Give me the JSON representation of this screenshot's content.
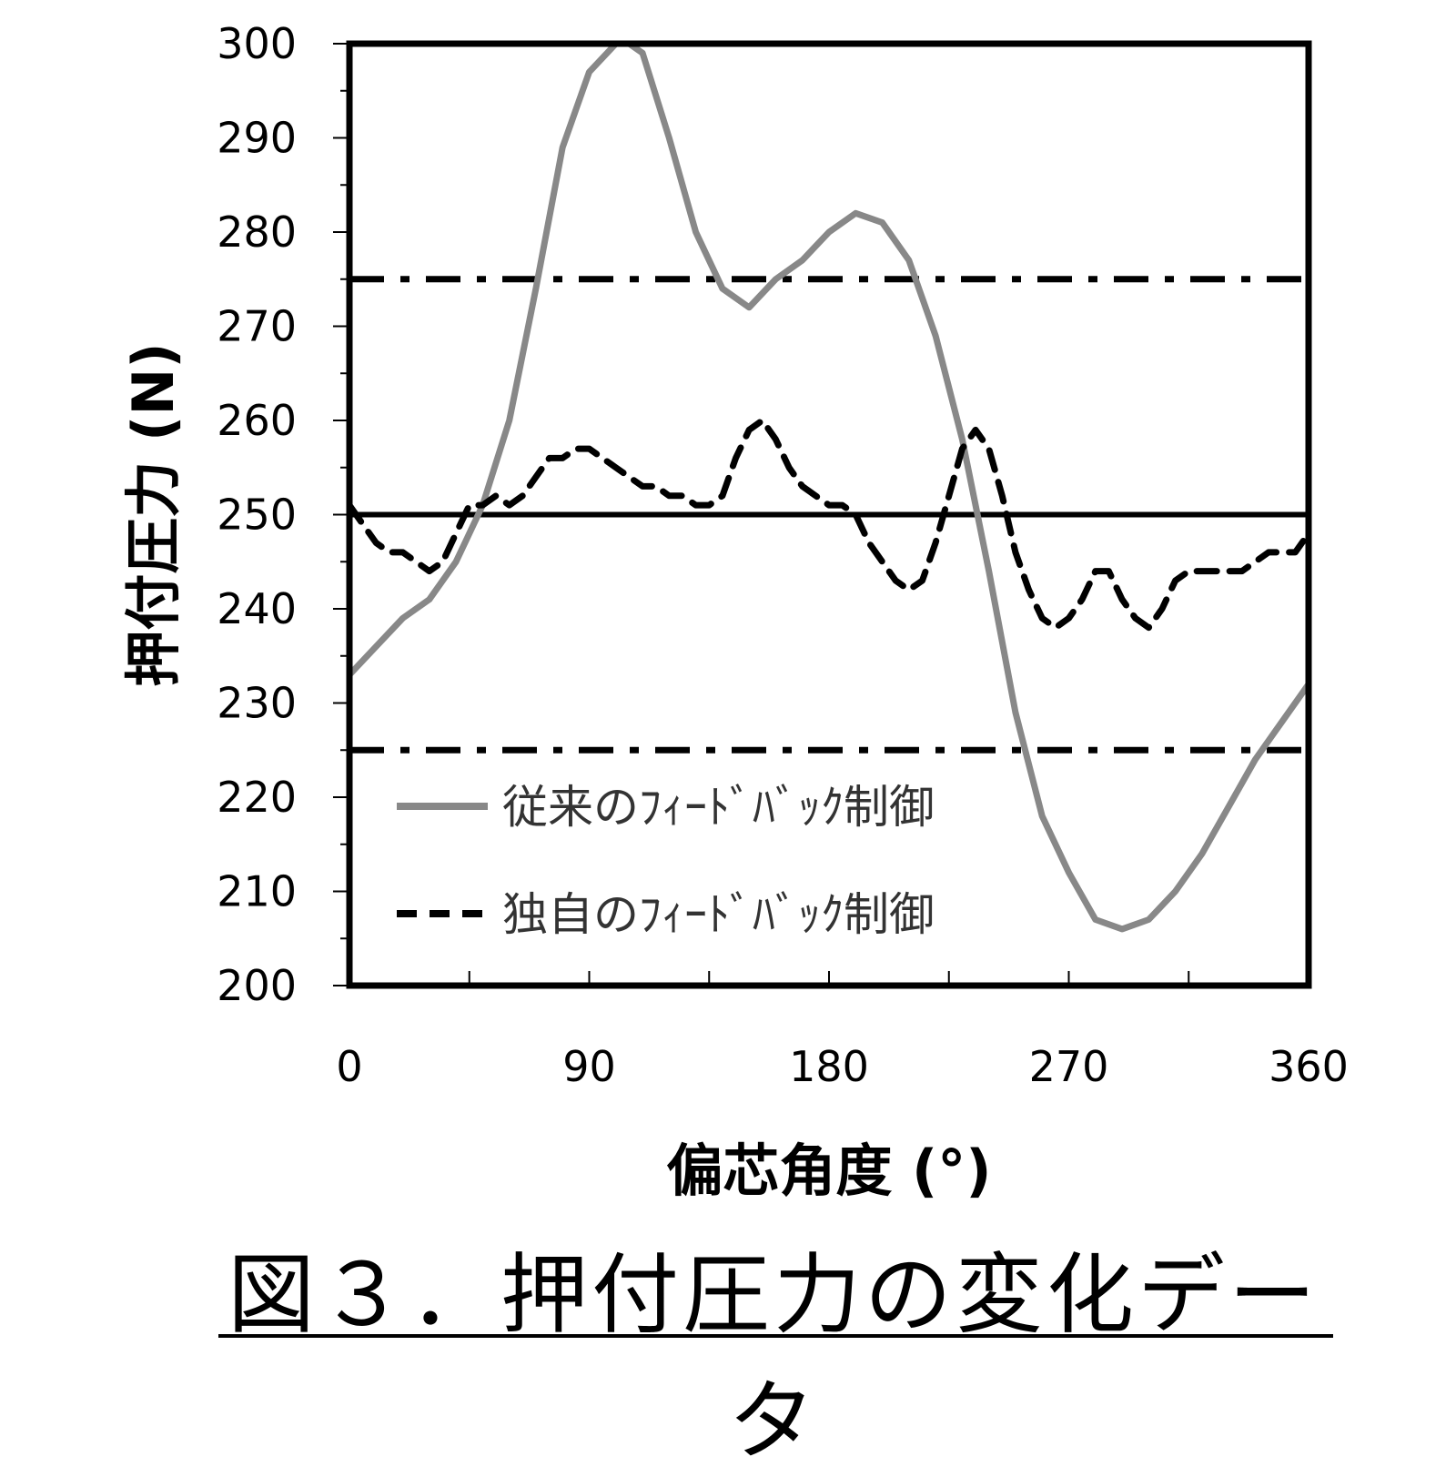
{
  "caption": "図３．押付圧力の変化データ",
  "chart_data": {
    "type": "line",
    "xlabel": "偏芯角度 (°)",
    "ylabel": "押付圧力 (N)",
    "xlim": [
      0,
      360
    ],
    "ylim": [
      200,
      300
    ],
    "xticks": [
      0,
      90,
      180,
      270,
      360
    ],
    "yticks": [
      200,
      210,
      220,
      230,
      240,
      250,
      260,
      270,
      280,
      290,
      300
    ],
    "grid": false,
    "legend": "lower-left",
    "reference_lines": [
      {
        "y": 250,
        "style": "solid",
        "color": "#000000"
      },
      {
        "y": 275,
        "style": "dash-dot",
        "color": "#000000"
      },
      {
        "y": 225,
        "style": "dash-dot",
        "color": "#000000"
      }
    ],
    "series": [
      {
        "name": "従来のﾌｨｰﾄﾞﾊﾞｯｸ制御",
        "style": "solid",
        "color": "#888888",
        "x": [
          0,
          10,
          20,
          30,
          40,
          50,
          60,
          70,
          80,
          90,
          100,
          105,
          110,
          120,
          130,
          140,
          150,
          160,
          170,
          180,
          190,
          200,
          210,
          220,
          230,
          240,
          250,
          260,
          270,
          280,
          290,
          300,
          310,
          320,
          330,
          340,
          350,
          360
        ],
        "y": [
          233,
          236,
          239,
          241,
          245,
          251,
          260,
          274,
          289,
          297,
          300,
          300,
          299,
          290,
          280,
          274,
          272,
          275,
          277,
          280,
          282,
          281,
          277,
          269,
          258,
          244,
          229,
          218,
          212,
          207,
          206,
          207,
          210,
          214,
          219,
          224,
          228,
          232
        ]
      },
      {
        "name": "独自のﾌｨｰﾄﾞﾊﾞｯｸ制御",
        "style": "dashed",
        "color": "#000000",
        "x": [
          0,
          5,
          10,
          15,
          20,
          25,
          30,
          35,
          40,
          45,
          50,
          55,
          60,
          65,
          70,
          75,
          80,
          85,
          90,
          95,
          100,
          105,
          110,
          115,
          120,
          125,
          130,
          135,
          140,
          145,
          150,
          155,
          160,
          165,
          170,
          175,
          180,
          185,
          190,
          195,
          200,
          205,
          210,
          215,
          220,
          225,
          230,
          235,
          240,
          245,
          250,
          255,
          260,
          265,
          270,
          275,
          280,
          285,
          290,
          295,
          300,
          305,
          310,
          315,
          320,
          325,
          330,
          335,
          340,
          345,
          350,
          355,
          360
        ],
        "y": [
          251,
          249,
          247,
          246,
          246,
          245,
          244,
          245,
          248,
          251,
          251,
          252,
          251,
          252,
          254,
          256,
          256,
          257,
          257,
          256,
          255,
          254,
          253,
          253,
          252,
          252,
          251,
          251,
          252,
          256,
          259,
          260,
          258,
          255,
          253,
          252,
          251,
          251,
          250,
          247,
          245,
          243,
          242,
          243,
          247,
          252,
          257,
          259,
          257,
          252,
          246,
          242,
          239,
          238,
          239,
          241,
          244,
          244,
          241,
          239,
          238,
          240,
          243,
          244,
          244,
          244,
          244,
          244,
          245,
          246,
          246,
          246,
          248
        ]
      }
    ]
  }
}
